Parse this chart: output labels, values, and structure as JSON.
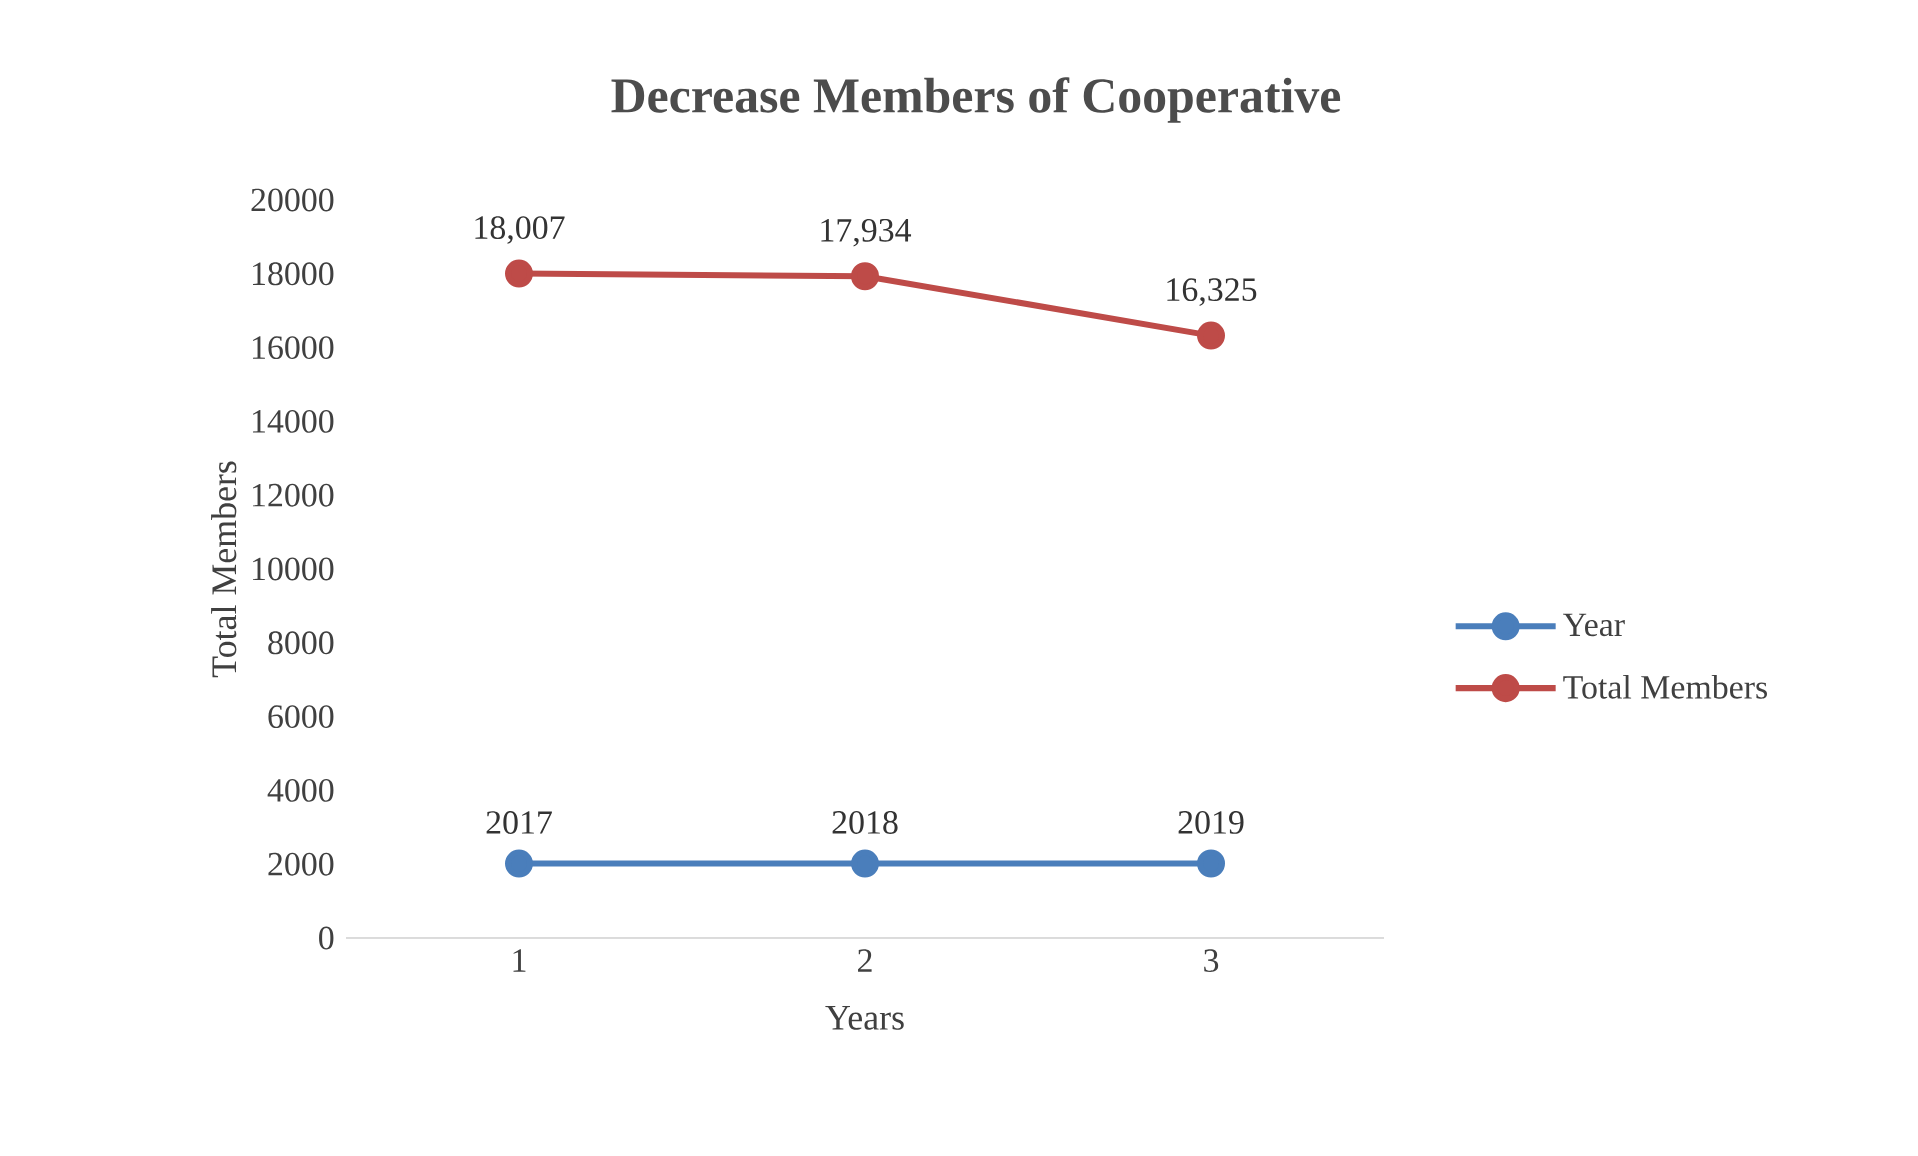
{
  "chart_data": {
    "type": "line",
    "title": "Decrease Members of Cooperative",
    "xlabel": "Years",
    "ylabel": "Total Members",
    "categories": [
      "1",
      "2",
      "3"
    ],
    "series": [
      {
        "name": "Year",
        "color": "#4a7ebb",
        "values": [
          2017,
          2018,
          2019
        ],
        "value_labels": [
          "2017",
          "2018",
          "2019"
        ]
      },
      {
        "name": "Total Members",
        "color": "#be4b48",
        "values": [
          18007,
          17934,
          16325
        ],
        "value_labels": [
          "18,007",
          "17,934",
          "16,325"
        ]
      }
    ],
    "ylim": [
      0,
      20000
    ],
    "yticks": [
      0,
      2000,
      4000,
      6000,
      8000,
      10000,
      12000,
      14000,
      16000,
      18000,
      20000
    ],
    "grid": false,
    "legend": "right",
    "marker": "circle",
    "line_style": "solid"
  }
}
